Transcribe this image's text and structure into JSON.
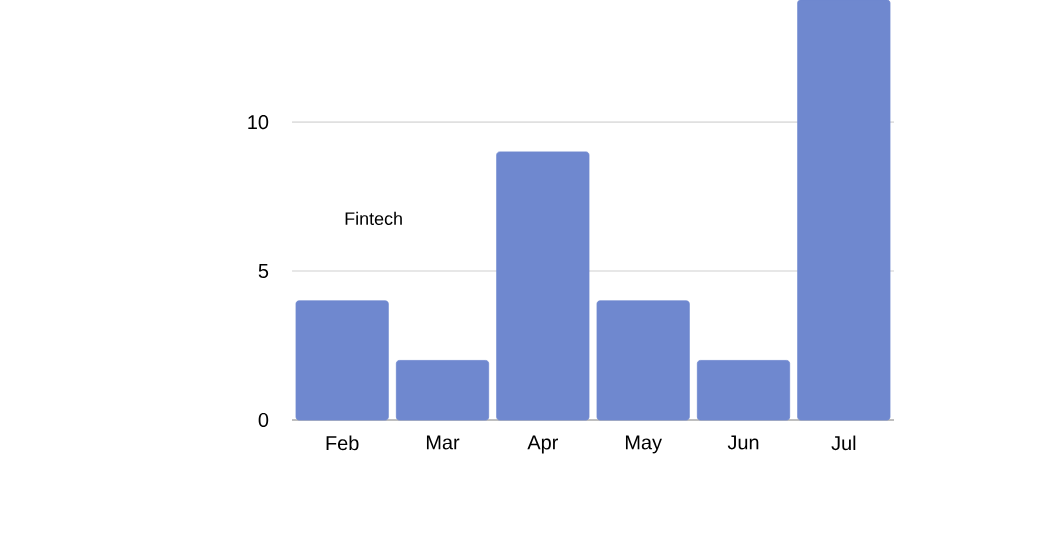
{
  "chart_data": {
    "type": "bar",
    "categories": [
      "Feb",
      "Mar",
      "Apr",
      "May",
      "Jun",
      "Jul"
    ],
    "values": [
      4,
      2,
      9,
      4,
      2,
      14.1
    ],
    "color": "#6f88cf",
    "ylim": [
      0,
      14.1
    ],
    "yticks": [
      0,
      5,
      10
    ],
    "grid": "y",
    "annotations": [
      "Fintech"
    ]
  }
}
